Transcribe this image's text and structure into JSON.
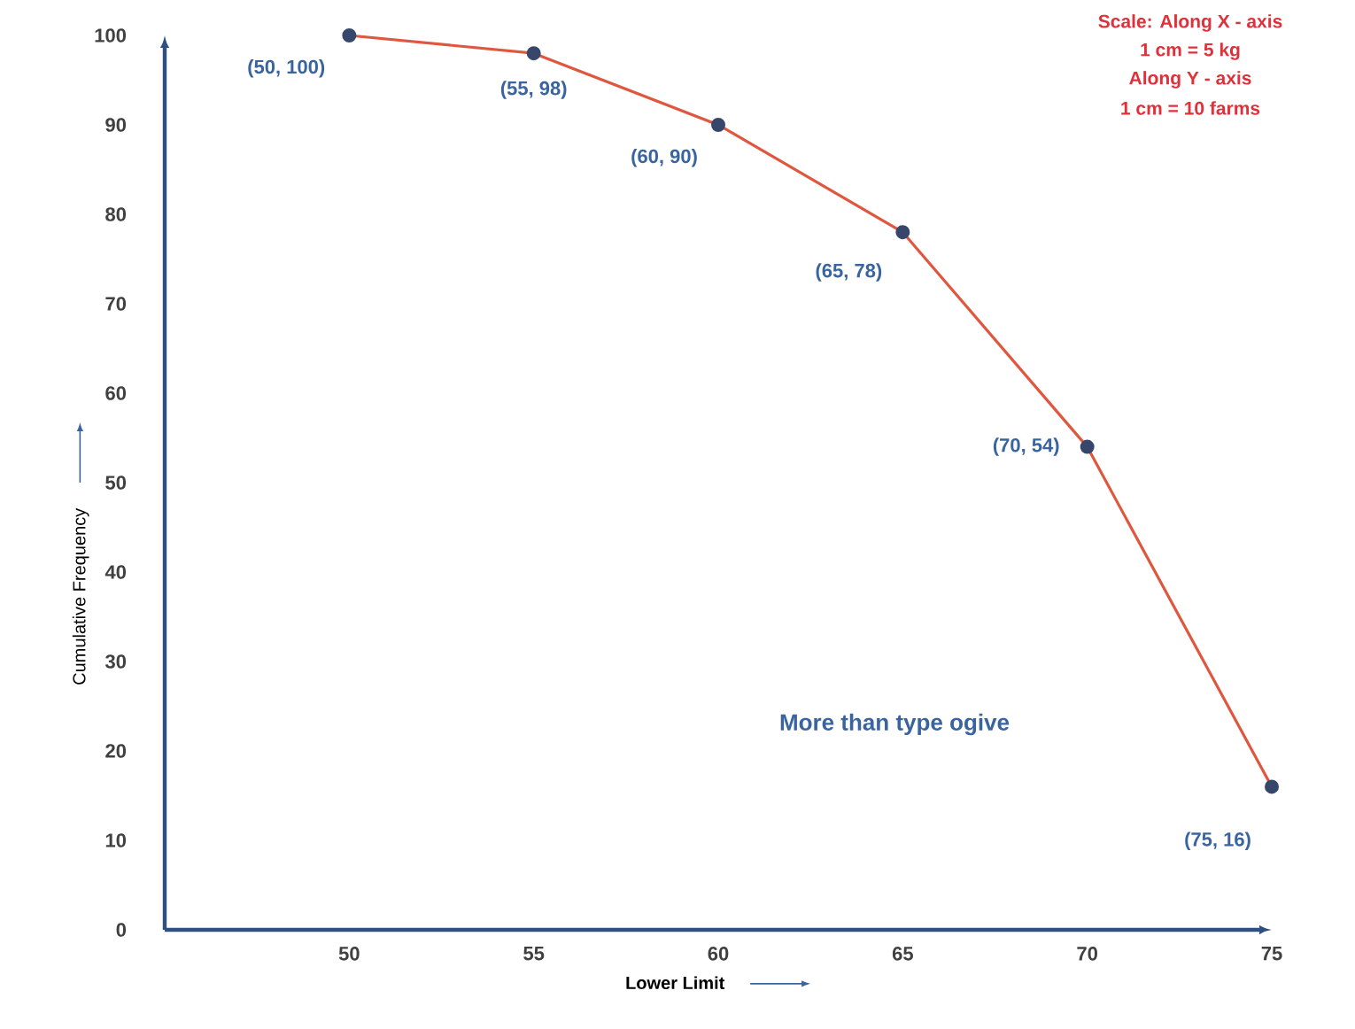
{
  "chart_data": {
    "type": "line",
    "xlabel": "Lower Limit",
    "ylabel": "Cumulative Frequency",
    "x": [
      50,
      55,
      60,
      65,
      70,
      75
    ],
    "series": [
      {
        "color": "#e0573f",
        "values": [
          100,
          98,
          90,
          78,
          54,
          16
        ],
        "value_labels": [
          "(50, 100)",
          "(55, 98)",
          "(60, 90)",
          "(65, 78)",
          "(70, 54)",
          "(75, 16)"
        ]
      }
    ],
    "xlim": [
      45,
      75
    ],
    "ylim": [
      0,
      100
    ],
    "xticks": [
      50,
      55,
      60,
      65,
      70,
      75
    ],
    "yticks": [
      0,
      10,
      20,
      30,
      40,
      50,
      60,
      70,
      80,
      90,
      100
    ],
    "marker": "circle",
    "line_style": "solid",
    "annotations": [
      "Scale:  Along X - axis",
      "1 cm = 5 kg",
      "Along Y - axis",
      "1 cm = 10 farms",
      "More than type ogive"
    ]
  }
}
